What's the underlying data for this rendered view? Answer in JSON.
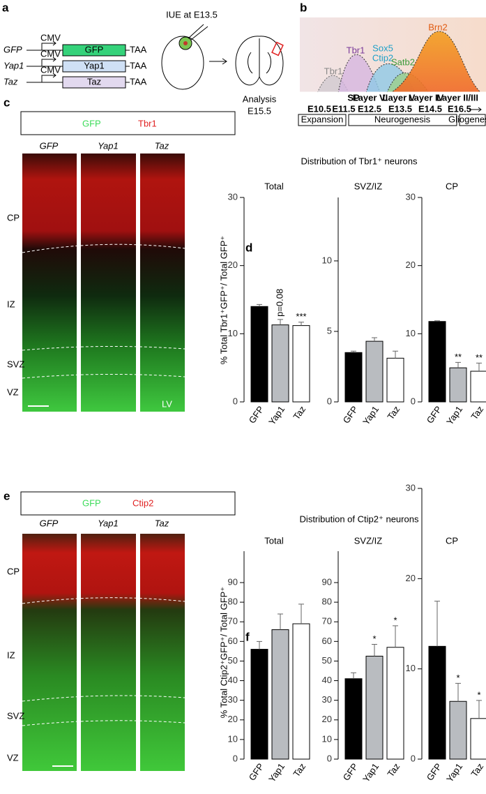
{
  "panel_a": {
    "label": "a",
    "constructs": [
      {
        "name": "GFP",
        "promoter": "CMV",
        "gene": "GFP",
        "stop": "TAA"
      },
      {
        "name": "Yap1",
        "promoter": "CMV",
        "gene": "Yap1",
        "stop": "TAA"
      },
      {
        "name": "Taz",
        "promoter": "CMV",
        "gene": "Taz",
        "stop": "TAA"
      }
    ],
    "procedure": "IUE at E13.5",
    "analysis": "Analysis",
    "analysis_stage": "E15.5"
  },
  "panel_b": {
    "label": "b",
    "curves": [
      "Tbr1",
      "Tbr1",
      "Sox5",
      "Ctip2",
      "Satb2",
      "Brn2"
    ],
    "layers": [
      "SP",
      "Layer VI",
      "Layer V",
      "Layer IV",
      "Layer II/III"
    ],
    "stages": [
      "E10.5",
      "E11.5",
      "E12.5",
      "E13.5",
      "E14.5",
      "E16.5"
    ],
    "phases": [
      "Expansion",
      "Neurogenesis",
      "Gliogenesis"
    ]
  },
  "panel_c": {
    "label": "c",
    "legend": [
      "GFP",
      "Tbr1"
    ],
    "columns": [
      "GFP",
      "Yap1",
      "Taz"
    ],
    "zones": [
      "CP",
      "IZ",
      "SVZ",
      "VZ"
    ],
    "ventricle": "LV"
  },
  "panel_d": {
    "label": "d",
    "title": "Distribution of Tbr1⁺ neurons"
  },
  "panel_e": {
    "label": "e",
    "legend": [
      "GFP",
      "Ctip2"
    ],
    "columns": [
      "GFP",
      "Yap1",
      "Taz"
    ],
    "zones": [
      "CP",
      "IZ",
      "SVZ",
      "VZ"
    ]
  },
  "panel_f": {
    "label": "f",
    "title": "Distribution of Ctip2⁺ neurons"
  },
  "chart_data": [
    {
      "type": "bar",
      "title": "Total",
      "ylabel": "% Total Tbr1⁺GFP⁺/ Total GFP⁺",
      "categories": [
        "GFP",
        "Yap1",
        "Taz"
      ],
      "values": [
        14,
        11.3,
        11.2
      ],
      "errors": [
        0.3,
        0.8,
        0.5
      ],
      "colors": [
        "#000000",
        "#b9bcc0",
        "#ffffff"
      ],
      "ylim": [
        0,
        30
      ],
      "yticks": [
        0,
        10,
        20,
        30
      ],
      "annotations": [
        {
          "category": "Yap1",
          "text": "p=0.08"
        },
        {
          "category": "Taz",
          "text": "***"
        }
      ]
    },
    {
      "type": "bar",
      "title": "SVZ/IZ",
      "categories": [
        "GFP",
        "Yap1",
        "Taz"
      ],
      "values": [
        3.5,
        4.3,
        3.1
      ],
      "errors": [
        0.1,
        0.25,
        0.5
      ],
      "colors": [
        "#000000",
        "#b9bcc0",
        "#ffffff"
      ],
      "ylim": [
        0,
        14.5
      ],
      "yticks": [
        0,
        5,
        10
      ]
    },
    {
      "type": "bar",
      "title": "CP",
      "categories": [
        "GFP",
        "Yap1",
        "Taz"
      ],
      "values": [
        11.8,
        5,
        4.5
      ],
      "errors": [
        0.1,
        0.8,
        1.2
      ],
      "colors": [
        "#000000",
        "#b9bcc0",
        "#ffffff"
      ],
      "ylim": [
        0,
        30
      ],
      "yticks": [
        0,
        10,
        20,
        30
      ],
      "annotations": [
        {
          "category": "Yap1",
          "text": "**"
        },
        {
          "category": "Taz",
          "text": "**"
        }
      ]
    },
    {
      "type": "bar",
      "title": "Total",
      "ylabel": "% Total Ctip2⁺GFP⁺/ Total GFP⁺",
      "categories": [
        "GFP",
        "Yap1",
        "Taz"
      ],
      "values": [
        56,
        66,
        69
      ],
      "errors": [
        4,
        8,
        10
      ],
      "colors": [
        "#000000",
        "#b9bcc0",
        "#ffffff"
      ],
      "ylim": [
        0,
        106
      ],
      "yticks": [
        0,
        10,
        20,
        30,
        40,
        50,
        60,
        70,
        80,
        90
      ]
    },
    {
      "type": "bar",
      "title": "SVZ/IZ",
      "categories": [
        "GFP",
        "Yap1",
        "Taz"
      ],
      "values": [
        41,
        52.5,
        57
      ],
      "errors": [
        3,
        6,
        11
      ],
      "colors": [
        "#000000",
        "#b9bcc0",
        "#ffffff"
      ],
      "ylim": [
        0,
        106
      ],
      "yticks": [
        0,
        10,
        20,
        30,
        40,
        50,
        60,
        70,
        80,
        90
      ],
      "annotations": [
        {
          "category": "Yap1",
          "text": "*"
        },
        {
          "category": "Taz",
          "text": "*"
        }
      ]
    },
    {
      "type": "bar",
      "title": "CP",
      "categories": [
        "GFP",
        "Yap1",
        "Taz"
      ],
      "values": [
        12.5,
        6.4,
        4.5
      ],
      "errors": [
        5,
        2,
        2
      ],
      "colors": [
        "#000000",
        "#b9bcc0",
        "#ffffff"
      ],
      "ylim": [
        0,
        30
      ],
      "yticks": [
        0,
        10,
        20,
        30
      ],
      "annotations": [
        {
          "category": "Yap1",
          "text": "*"
        },
        {
          "category": "Taz",
          "text": "*"
        }
      ]
    }
  ]
}
